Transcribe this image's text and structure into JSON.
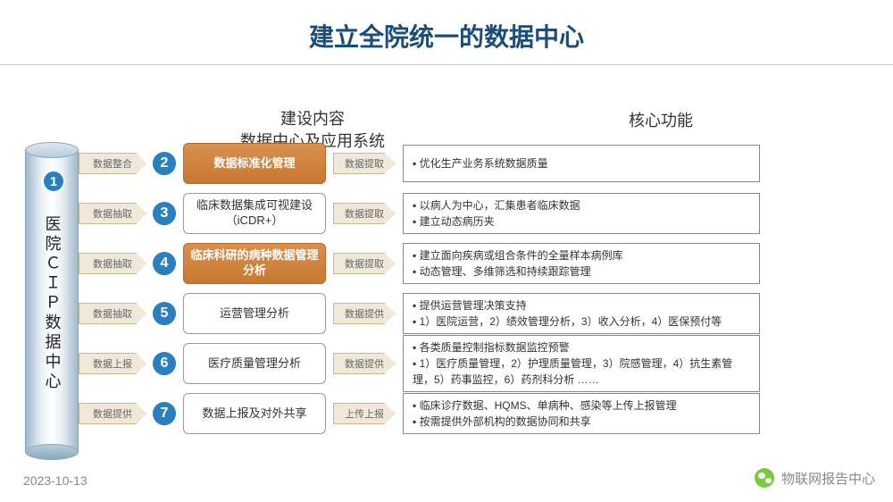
{
  "title": "建立全院统一的数据中心",
  "subtitle1_line1": "建设内容",
  "subtitle1_line2": "数据中心及应用系统",
  "subtitle2": "核心功能",
  "cylinder_label": "医院ＣＩＰ数据中心",
  "colors": {
    "title": "#1a4d7a",
    "circle_bg": "#2a7fbf",
    "orange_box_top": "#d89050",
    "orange_box_bottom": "#c87830",
    "arrow_bg": "#f0e8d8",
    "arrow_border": "#c8b890",
    "cylinder_light": "#e8f0f5",
    "cylinder_dark": "#9fb9cc"
  },
  "rows": [
    {
      "num": "2",
      "left_arrow": "数据整合",
      "box": "数据标准化管理",
      "box_style": "orange",
      "mid_arrow": "数据提取",
      "funcs": [
        "▪ 优化生产业务系统数据质量"
      ]
    },
    {
      "num": "3",
      "left_arrow": "数据抽取",
      "box": "临床数据集成可视建设（iCDR+）",
      "box_style": "white",
      "mid_arrow": "数据提取",
      "funcs": [
        "▪ 以病人为中心，汇集患者临床数据",
        "▪ 建立动态病历夹"
      ]
    },
    {
      "num": "4",
      "left_arrow": "数据抽取",
      "box": "临床科研的病种数据管理分析",
      "box_style": "orange",
      "mid_arrow": "数据提取",
      "funcs": [
        "▪ 建立面向疾病或组合条件的全量样本病例库",
        "▪ 动态管理、多维筛选和持续跟踪管理"
      ]
    },
    {
      "num": "5",
      "left_arrow": "数据抽取",
      "box": "运营管理分析",
      "box_style": "white",
      "mid_arrow": "数据提供",
      "funcs": [
        "▪ 提供运营管理决策支持",
        "▪ 1）医院运营，2）绩效管理分析，3）收入分析，4）医保预付等"
      ]
    },
    {
      "num": "6",
      "left_arrow": "数据上报",
      "box": "医疗质量管理分析",
      "box_style": "white",
      "mid_arrow": "数据提供",
      "funcs": [
        "▪ 各类质量控制指标数据监控预警",
        "▪ 1）医疗质量管理，2）护理质量管理，3）院感管理，4）抗生素管理，5）药事监控，6）药剂科分析  ……"
      ]
    },
    {
      "num": "7",
      "left_arrow": "数据提供",
      "box": "数据上报及对外共享",
      "box_style": "white",
      "mid_arrow": "上传上报",
      "funcs": [
        "▪ 临床诊疗数据、HQMS、单病种、感染等上传上报管理",
        "▪ 按需提供外部机构的数据协同和共享"
      ]
    }
  ],
  "footer_date": "2023-10-13",
  "footer_source": "物联网报告中心"
}
